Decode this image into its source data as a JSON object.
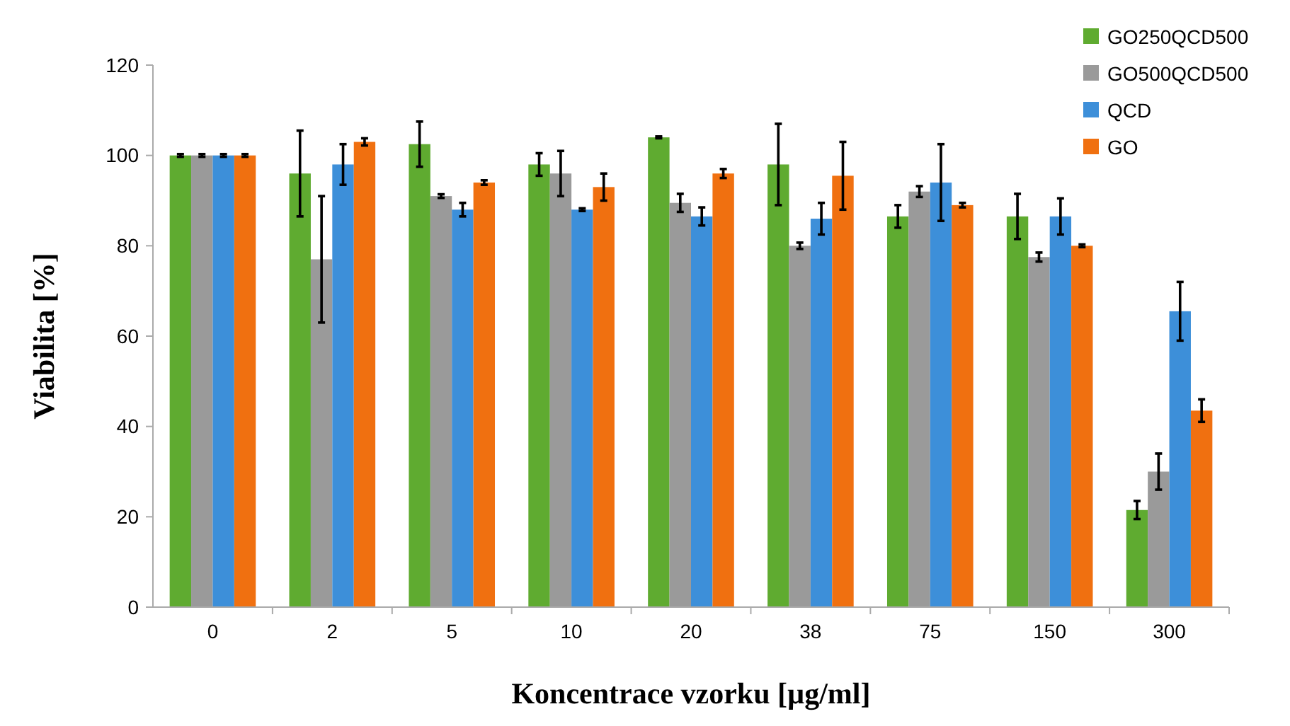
{
  "chart_data": {
    "type": "bar",
    "xlabel": "Koncentrace vzorku [µg/ml]",
    "ylabel": "Viabilita [%]",
    "categories": [
      "0",
      "2",
      "5",
      "10",
      "20",
      "38",
      "75",
      "150",
      "300"
    ],
    "series": [
      {
        "name": "GO250QCD500",
        "color": "#5fab30",
        "values": [
          100,
          96,
          102.5,
          98,
          104,
          98,
          86.5,
          86.5,
          21.5
        ],
        "errors": [
          0.3,
          9.5,
          5,
          2.5,
          0.2,
          9,
          2.5,
          5,
          2
        ]
      },
      {
        "name": "GO500QCD500",
        "color": "#9a9a9a",
        "values": [
          100,
          77,
          91,
          96,
          89.5,
          80,
          92,
          77.5,
          30
        ],
        "errors": [
          0.3,
          14,
          0.4,
          5,
          2,
          0.7,
          1.2,
          1,
          4
        ]
      },
      {
        "name": "QCD",
        "color": "#3d8fd9",
        "values": [
          100,
          98,
          88,
          88,
          86.5,
          86,
          94,
          86.5,
          65.5
        ],
        "errors": [
          0.3,
          4.5,
          1.5,
          0.3,
          2,
          3.5,
          8.5,
          4,
          6.5
        ]
      },
      {
        "name": "GO",
        "color": "#f07010",
        "values": [
          100,
          103,
          94,
          93,
          96,
          95.5,
          89,
          80,
          43.5
        ],
        "errors": [
          0.3,
          0.8,
          0.5,
          3,
          1,
          7.5,
          0.5,
          0.3,
          2.5
        ]
      }
    ],
    "ylim": [
      0,
      120
    ],
    "yticks": [
      0,
      20,
      40,
      60,
      80,
      100,
      120
    ],
    "grid": false,
    "legend": "top right"
  }
}
